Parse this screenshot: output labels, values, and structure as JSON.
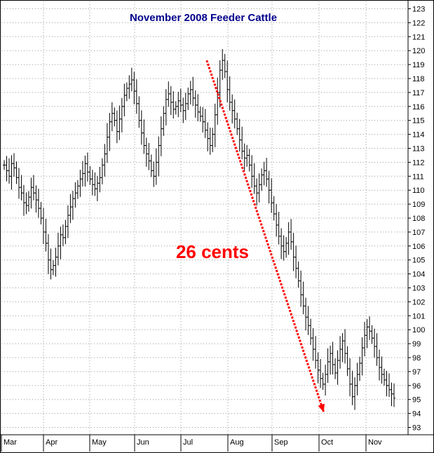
{
  "chart_data": {
    "type": "bar",
    "style": "ohlc-bars",
    "title": "November 2008 Feeder Cattle",
    "xlabel": "",
    "ylabel": "",
    "ylim": [
      92.5,
      123.5
    ],
    "y_ticks": [
      93,
      94,
      95,
      96,
      97,
      98,
      99,
      100,
      101,
      102,
      103,
      104,
      105,
      106,
      107,
      108,
      109,
      110,
      111,
      112,
      113,
      114,
      115,
      116,
      117,
      118,
      119,
      120,
      121,
      122,
      123
    ],
    "months": [
      "Mar",
      "Apr",
      "May",
      "Jun",
      "Jul",
      "Aug",
      "Sep",
      "Oct",
      "Nov"
    ],
    "grid": true,
    "y_axis_side": "right",
    "series": [
      {
        "approx_close": [
          111.8,
          111.4,
          111.0,
          111.9,
          111.6,
          110.9,
          110.2,
          109.8,
          109.1,
          108.9,
          109.5,
          110.2,
          109.8,
          109.3,
          108.7,
          108.0,
          107.0,
          106.2,
          105.0,
          104.3,
          104.6,
          105.2,
          106.0,
          106.8,
          106.6,
          107.4,
          108.2,
          108.8,
          109.4,
          109.8,
          110.3,
          110.8,
          111.2,
          111.9,
          111.3,
          110.8,
          110.4,
          110.1,
          110.5,
          110.9,
          111.8,
          112.6,
          113.8,
          114.9,
          115.5,
          115.0,
          114.2,
          115.1,
          116.0,
          116.8,
          117.3,
          117.6,
          117.9,
          117.1,
          116.2,
          115.0,
          114.1,
          113.2,
          112.6,
          112.1,
          111.4,
          111.0,
          112.0,
          113.2,
          114.4,
          115.5,
          116.5,
          116.9,
          116.3,
          115.8,
          116.0,
          116.4,
          116.1,
          115.7,
          116.2,
          116.9,
          117.2,
          116.6,
          116.1,
          115.6,
          115.3,
          114.9,
          114.3,
          113.7,
          113.2,
          114.0,
          115.4,
          117.0,
          118.6,
          119.3,
          118.5,
          117.2,
          116.3,
          115.7,
          115.1,
          114.4,
          113.6,
          112.8,
          112.3,
          112.5,
          111.8,
          111.0,
          110.3,
          109.8,
          110.4,
          111.1,
          111.4,
          110.8,
          110.0,
          109.1,
          108.3,
          107.5,
          106.7,
          106.0,
          105.6,
          106.2,
          107.0,
          106.3,
          105.2,
          104.4,
          103.5,
          102.5,
          101.7,
          100.9,
          100.3,
          99.4,
          98.6,
          97.8,
          97.1,
          96.5,
          96.1,
          96.8,
          97.7,
          98.3,
          97.5,
          96.9,
          97.8,
          98.6,
          99.2,
          98.3,
          97.2,
          96.1,
          95.2,
          96.0,
          96.8,
          97.6,
          98.7,
          99.6,
          100.2,
          99.9,
          99.4,
          98.8,
          98.0,
          97.3,
          96.8,
          96.4,
          96.0,
          95.7,
          95.4,
          95.1
        ]
      }
    ],
    "annotations": [
      {
        "text": "26 cents",
        "color": "#ff0000"
      },
      {
        "type": "arrow",
        "style": "dashed",
        "color": "#ff0000",
        "from": {
          "month_index": 4.55,
          "y": 119.3
        },
        "to": {
          "month_index": 7.1,
          "y": 94.1
        }
      }
    ]
  },
  "colors": {
    "title": "#00008b",
    "bars": "#000000",
    "grid": "#999999",
    "annotation": "#ff0000",
    "frame": "#000000"
  }
}
